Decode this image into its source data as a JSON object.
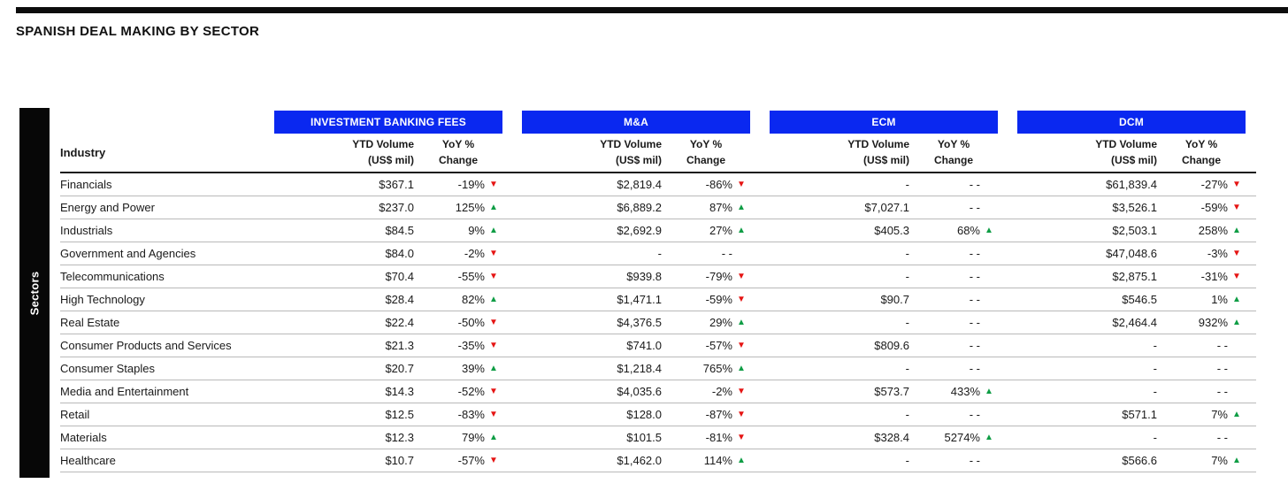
{
  "title": "SPANISH DEAL MAKING BY SECTOR",
  "sector_axis_label": "Sectors",
  "colors": {
    "header_blue": "#0a28f0",
    "up_green": "#0f9d45",
    "down_red": "#e51413"
  },
  "table": {
    "industry_header": "Industry",
    "groups": [
      {
        "key": "ibf",
        "label": "INVESTMENT BANKING FEES"
      },
      {
        "key": "mna",
        "label": "M&A"
      },
      {
        "key": "ecm",
        "label": "ECM"
      },
      {
        "key": "dcm",
        "label": "DCM"
      }
    ],
    "sub_headers": {
      "volume_line1": "YTD Volume",
      "volume_line2": "(US$ mil)",
      "yoy_line1": "YoY %",
      "yoy_line2": "Change"
    },
    "rows": [
      {
        "industry": "Financials",
        "ibf": {
          "volume": "$367.1",
          "yoy": "-19%",
          "dir": "down"
        },
        "mna": {
          "volume": "$2,819.4",
          "yoy": "-86%",
          "dir": "down"
        },
        "ecm": {
          "volume": "-",
          "yoy": "- -",
          "dir": "none"
        },
        "dcm": {
          "volume": "$61,839.4",
          "yoy": "-27%",
          "dir": "down"
        }
      },
      {
        "industry": "Energy and Power",
        "ibf": {
          "volume": "$237.0",
          "yoy": "125%",
          "dir": "up"
        },
        "mna": {
          "volume": "$6,889.2",
          "yoy": "87%",
          "dir": "up"
        },
        "ecm": {
          "volume": "$7,027.1",
          "yoy": "- -",
          "dir": "none"
        },
        "dcm": {
          "volume": "$3,526.1",
          "yoy": "-59%",
          "dir": "down"
        }
      },
      {
        "industry": "Industrials",
        "ibf": {
          "volume": "$84.5",
          "yoy": "9%",
          "dir": "up"
        },
        "mna": {
          "volume": "$2,692.9",
          "yoy": "27%",
          "dir": "up"
        },
        "ecm": {
          "volume": "$405.3",
          "yoy": "68%",
          "dir": "up"
        },
        "dcm": {
          "volume": "$2,503.1",
          "yoy": "258%",
          "dir": "up"
        }
      },
      {
        "industry": "Government and Agencies",
        "ibf": {
          "volume": "$84.0",
          "yoy": "-2%",
          "dir": "down"
        },
        "mna": {
          "volume": "-",
          "yoy": "- -",
          "dir": "none"
        },
        "ecm": {
          "volume": "-",
          "yoy": "- -",
          "dir": "none"
        },
        "dcm": {
          "volume": "$47,048.6",
          "yoy": "-3%",
          "dir": "down"
        }
      },
      {
        "industry": "Telecommunications",
        "ibf": {
          "volume": "$70.4",
          "yoy": "-55%",
          "dir": "down"
        },
        "mna": {
          "volume": "$939.8",
          "yoy": "-79%",
          "dir": "down"
        },
        "ecm": {
          "volume": "-",
          "yoy": "- -",
          "dir": "none"
        },
        "dcm": {
          "volume": "$2,875.1",
          "yoy": "-31%",
          "dir": "down"
        }
      },
      {
        "industry": "High Technology",
        "ibf": {
          "volume": "$28.4",
          "yoy": "82%",
          "dir": "up"
        },
        "mna": {
          "volume": "$1,471.1",
          "yoy": "-59%",
          "dir": "down"
        },
        "ecm": {
          "volume": "$90.7",
          "yoy": "- -",
          "dir": "none"
        },
        "dcm": {
          "volume": "$546.5",
          "yoy": "1%",
          "dir": "up"
        }
      },
      {
        "industry": "Real Estate",
        "ibf": {
          "volume": "$22.4",
          "yoy": "-50%",
          "dir": "down"
        },
        "mna": {
          "volume": "$4,376.5",
          "yoy": "29%",
          "dir": "up"
        },
        "ecm": {
          "volume": "-",
          "yoy": "- -",
          "dir": "none"
        },
        "dcm": {
          "volume": "$2,464.4",
          "yoy": "932%",
          "dir": "up"
        }
      },
      {
        "industry": "Consumer Products and Services",
        "ibf": {
          "volume": "$21.3",
          "yoy": "-35%",
          "dir": "down"
        },
        "mna": {
          "volume": "$741.0",
          "yoy": "-57%",
          "dir": "down"
        },
        "ecm": {
          "volume": "$809.6",
          "yoy": "- -",
          "dir": "none"
        },
        "dcm": {
          "volume": "-",
          "yoy": "- -",
          "dir": "none"
        }
      },
      {
        "industry": "Consumer Staples",
        "ibf": {
          "volume": "$20.7",
          "yoy": "39%",
          "dir": "up"
        },
        "mna": {
          "volume": "$1,218.4",
          "yoy": "765%",
          "dir": "up"
        },
        "ecm": {
          "volume": "-",
          "yoy": "- -",
          "dir": "none"
        },
        "dcm": {
          "volume": "-",
          "yoy": "- -",
          "dir": "none"
        }
      },
      {
        "industry": "Media and Entertainment",
        "ibf": {
          "volume": "$14.3",
          "yoy": "-52%",
          "dir": "down"
        },
        "mna": {
          "volume": "$4,035.6",
          "yoy": "-2%",
          "dir": "down"
        },
        "ecm": {
          "volume": "$573.7",
          "yoy": "433%",
          "dir": "up"
        },
        "dcm": {
          "volume": "-",
          "yoy": "- -",
          "dir": "none"
        }
      },
      {
        "industry": "Retail",
        "ibf": {
          "volume": "$12.5",
          "yoy": "-83%",
          "dir": "down"
        },
        "mna": {
          "volume": "$128.0",
          "yoy": "-87%",
          "dir": "down"
        },
        "ecm": {
          "volume": "-",
          "yoy": "- -",
          "dir": "none"
        },
        "dcm": {
          "volume": "$571.1",
          "yoy": "7%",
          "dir": "up"
        }
      },
      {
        "industry": "Materials",
        "ibf": {
          "volume": "$12.3",
          "yoy": "79%",
          "dir": "up"
        },
        "mna": {
          "volume": "$101.5",
          "yoy": "-81%",
          "dir": "down"
        },
        "ecm": {
          "volume": "$328.4",
          "yoy": "5274%",
          "dir": "up"
        },
        "dcm": {
          "volume": "-",
          "yoy": "- -",
          "dir": "none"
        }
      },
      {
        "industry": "Healthcare",
        "ibf": {
          "volume": "$10.7",
          "yoy": "-57%",
          "dir": "down"
        },
        "mna": {
          "volume": "$1,462.0",
          "yoy": "114%",
          "dir": "up"
        },
        "ecm": {
          "volume": "-",
          "yoy": "- -",
          "dir": "none"
        },
        "dcm": {
          "volume": "$566.6",
          "yoy": "7%",
          "dir": "up"
        }
      }
    ]
  }
}
